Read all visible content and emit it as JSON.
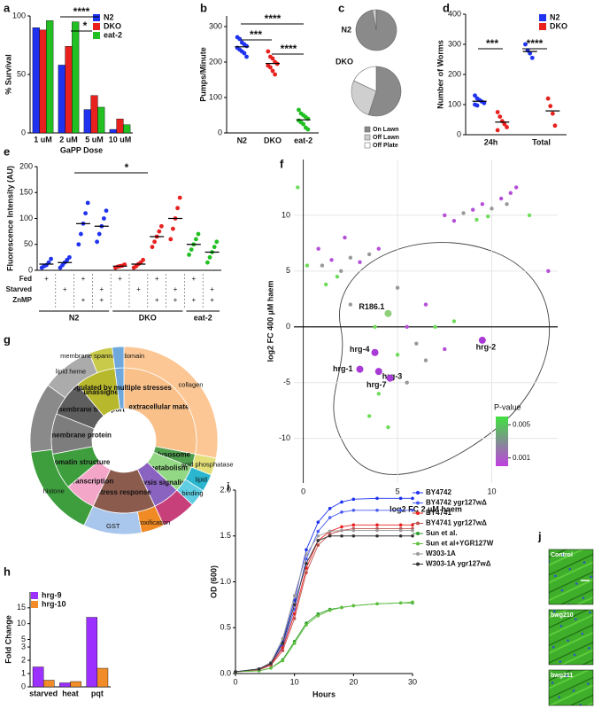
{
  "chart_data": [
    {
      "type": "bar",
      "panel": "a",
      "ylabel": "% Survival",
      "xlabel": "GaPP Dose",
      "categories": [
        "1 uM",
        "2 uM",
        "5 uM",
        "10 uM"
      ],
      "series": [
        {
          "name": "N2",
          "color": "#1e32f0",
          "values": [
            90,
            58,
            20,
            3
          ]
        },
        {
          "name": "DKO",
          "color": "#e8201e",
          "values": [
            88,
            74,
            32,
            12
          ]
        },
        {
          "name": "eat-2",
          "color": "#22c022",
          "values": [
            96,
            95,
            22,
            7
          ]
        }
      ],
      "ylim": [
        0,
        100
      ],
      "yticks": [
        0,
        50,
        100
      ],
      "annotations": [
        "****",
        "*"
      ]
    },
    {
      "type": "strip",
      "panel": "b",
      "ylabel": "Pumps/Minute",
      "categories": [
        "N2",
        "DKO",
        "eat-2"
      ],
      "colors": [
        "#1e32f0",
        "#e8201e",
        "#22c022"
      ],
      "values": [
        243,
        196,
        37
      ],
      "points": [
        [
          270,
          265,
          255,
          250,
          245,
          240,
          235,
          230,
          225,
          215
        ],
        [
          230,
          215,
          210,
          200,
          195,
          190,
          185,
          175,
          165
        ],
        [
          65,
          55,
          50,
          45,
          40,
          35,
          30,
          25,
          15,
          10
        ]
      ],
      "ylim": [
        0,
        330
      ],
      "yticks": [
        0,
        100,
        200,
        300
      ],
      "annotations": [
        "****",
        "***",
        "****"
      ]
    },
    {
      "type": "pie",
      "panel": "c",
      "categories": [
        "On Lawn",
        "Off Lawn",
        "Off Plate"
      ],
      "colors": [
        "#8a8a8a",
        "#cfcfcf",
        "#ffffff"
      ],
      "pies": [
        {
          "label": "N2",
          "values": [
            97,
            3,
            0
          ]
        },
        {
          "label": "DKO",
          "values": [
            55,
            27,
            18
          ]
        }
      ]
    },
    {
      "type": "strip",
      "panel": "d",
      "ylabel": "Number of Worms",
      "categories": [
        "24h",
        "Total"
      ],
      "series": [
        {
          "name": "N2",
          "color": "#1e32f0",
          "values": [
            111,
            276
          ],
          "points": [
            [
              130,
              120,
              115,
              110,
              105,
              100,
              97
            ],
            [
              300,
              280,
              270,
              255
            ]
          ]
        },
        {
          "name": "DKO",
          "color": "#e8201e",
          "values": [
            42,
            79
          ],
          "points": [
            [
              75,
              60,
              45,
              35,
              25,
              15
            ],
            [
              120,
              95,
              70,
              30
            ]
          ]
        }
      ],
      "ylim": [
        0,
        400
      ],
      "yticks": [
        0,
        100,
        200,
        300,
        400
      ],
      "annotations": [
        "***",
        "****"
      ]
    },
    {
      "type": "strip",
      "panel": "e",
      "ylabel": "Fluorescence Intensity (AU)",
      "values": [
        12,
        15,
        90,
        85,
        8,
        12,
        65,
        100,
        50,
        35
      ],
      "colors": [
        "#1e32f0",
        "#1e32f0",
        "#1e32f0",
        "#1e32f0",
        "#e8201e",
        "#e8201e",
        "#e8201e",
        "#e8201e",
        "#22c022",
        "#22c022"
      ],
      "points": [
        [
          5,
          8,
          10,
          15,
          22
        ],
        [
          5,
          10,
          15,
          20,
          25
        ],
        [
          50,
          70,
          90,
          110,
          130
        ],
        [
          55,
          70,
          85,
          100,
          115
        ],
        [
          5,
          7,
          8,
          9,
          11
        ],
        [
          5,
          8,
          12,
          15,
          20
        ],
        [
          45,
          55,
          65,
          75,
          85
        ],
        [
          60,
          80,
          100,
          120,
          140
        ],
        [
          30,
          40,
          50,
          60,
          70
        ],
        [
          15,
          25,
          35,
          45,
          55
        ]
      ],
      "ylim": [
        0,
        200
      ],
      "yticks": [
        0,
        50,
        100,
        150,
        200
      ],
      "table": {
        "rows": [
          {
            "label": "Fed",
            "marks": [
              "+",
              null,
              "+",
              null,
              "+",
              null,
              "+",
              null,
              "+",
              null
            ]
          },
          {
            "label": "Starved",
            "marks": [
              null,
              "+",
              null,
              "+",
              null,
              "+",
              null,
              "+",
              null,
              "+"
            ]
          },
          {
            "label": "ZnMP",
            "marks": [
              null,
              null,
              "+",
              "+",
              null,
              null,
              "+",
              "+",
              "+",
              "+"
            ]
          }
        ]
      },
      "groups": [
        {
          "label": "N2",
          "span": 4
        },
        {
          "label": "DKO",
          "span": 4
        },
        {
          "label": "eat-2",
          "span": 2
        }
      ],
      "annotations": [
        "*"
      ]
    },
    {
      "type": "scatter",
      "panel": "f",
      "xlabel": "log2 FC 2 µM haem",
      "ylabel": "log2 FC 400 µM haem",
      "x": [
        8.5,
        9.0,
        9.5,
        10.0,
        10.5,
        11.0,
        9.2,
        9.8,
        8.0,
        10.8,
        11.3,
        7.5,
        1.0,
        1.5,
        2.0,
        2.5,
        3.0,
        1.8,
        0.8,
        3.5,
        2.2,
        1.2,
        0.2,
        4.0,
        3.8,
        5.5,
        7.0,
        6.0,
        5.0,
        6.5,
        4.0,
        5.5,
        3.5,
        4.5,
        7.5,
        8.0,
        2.5,
        6.5,
        12.0,
        13.0,
        -0.3,
        5.0
      ],
      "y": [
        10.2,
        10.5,
        11.0,
        10.6,
        11.5,
        12.0,
        9.6,
        9.9,
        9.5,
        11.0,
        12.5,
        10.0,
        5.5,
        6.0,
        5.0,
        6.2,
        5.8,
        4.5,
        7.0,
        6.5,
        8.0,
        3.8,
        5.5,
        7.0,
        0.0,
        0.0,
        0.0,
        -1.5,
        -2.5,
        -3.0,
        -6.0,
        -5.0,
        -8.0,
        -9.0,
        -2.0,
        0.5,
        2.0,
        2.0,
        10.0,
        5.0,
        12.5,
        3.5
      ],
      "colors": [
        "#999999",
        "#b44fd8",
        "#b44fd8",
        "#999999",
        "#b44fd8",
        "#b44fd8",
        "#6fdc5a",
        "#6fdc5a",
        "#b44fd8",
        "#999999",
        "#b44fd8",
        "#b44fd8",
        "#999999",
        "#b44fd8",
        "#999999",
        "#999999",
        "#b44fd8",
        "#6fdc5a",
        "#b44fd8",
        "#999999",
        "#b44fd8",
        "#6fdc5a",
        "#6fdc5a",
        "#b44fd8",
        "#6fdc5a",
        "#b44fd8",
        "#6fdc5a",
        "#999999",
        "#6fdc5a",
        "#999999",
        "#6fdc5a",
        "#999999",
        "#6fdc5a",
        "#6fdc5a",
        "#b44fd8",
        "#6fdc5a",
        "#999999",
        "#b44fd8",
        "#6fdc5a",
        "#b44fd8",
        "#6fdc5a",
        "#999999"
      ],
      "highlights": [
        {
          "label": "R186.1",
          "x": 4.5,
          "y": 1.2,
          "color": "#8fcf7a"
        },
        {
          "label": "hrg-4",
          "x": 3.8,
          "y": -2.3,
          "color": "#a83ad6"
        },
        {
          "label": "hrg-1",
          "x": 3.0,
          "y": -3.8,
          "color": "#a83ad6"
        },
        {
          "label": "hrg-3",
          "x": 4.0,
          "y": -4.0,
          "color": "#a83ad6"
        },
        {
          "label": "hrg-7",
          "x": 4.6,
          "y": -4.6,
          "color": "#a83ad6"
        },
        {
          "label": "hrg-2",
          "x": 9.5,
          "y": -1.2,
          "color": "#a83ad6"
        }
      ],
      "xlim": [
        -0.5,
        13.5
      ],
      "ylim": [
        -14,
        15
      ],
      "xticks": [
        0,
        5,
        10
      ],
      "yticks": [
        -10,
        -5,
        0,
        5,
        10
      ],
      "grid": true,
      "colorbar": {
        "title": "P-value",
        "lim": [
          0,
          0.006
        ],
        "ticks": [
          0.005,
          0.001
        ],
        "colors": [
          "#c040e0",
          "#40e040"
        ]
      }
    },
    {
      "type": "sunburst",
      "panel": "g",
      "inner": [
        {
          "label": "extracellular material",
          "value": 28,
          "color": "#f9c08a"
        },
        {
          "label": "lysosome",
          "value": 3,
          "color": "#4ea04e"
        },
        {
          "label": "metabolism",
          "value": 6,
          "color": "#93d884"
        },
        {
          "label": "proteolysis signaling",
          "value": 6,
          "color": "#8a62c0"
        },
        {
          "label": "stress response",
          "value": 14,
          "color": "#8b5b4e"
        },
        {
          "label": "transcription",
          "value": 7,
          "color": "#f4a6c9"
        },
        {
          "label": "chromatin structure",
          "value": 8,
          "color": "#3e9e3e"
        },
        {
          "label": "transmembrane protein",
          "value": 9,
          "color": "#7d7d7d"
        },
        {
          "label": "transmembrane transport",
          "value": 8,
          "color": "#5e5e5e"
        },
        {
          "label": "unassigned",
          "value": 9,
          "color": "#b8b82c"
        },
        {
          "label": "regulated by multiple stresses",
          "value": 2,
          "color": "#6fa8dc"
        }
      ],
      "outer": [
        {
          "label": "collagen",
          "value": 28,
          "color": "#fcc794"
        },
        {
          "label": "acid phosphatase",
          "value": 3,
          "color": "#e3e07a"
        },
        {
          "label": "lipid",
          "value": 3,
          "color": "#2bb6cf"
        },
        {
          "label": "binding",
          "value": 3,
          "color": "#5fcde2"
        },
        {
          "label": null,
          "value": 6,
          "color": "#c8407a"
        },
        {
          "label": "detoxification",
          "value": 4,
          "color": "#f08a24"
        },
        {
          "label": "GST",
          "value": 10,
          "color": "#a9c6ec"
        },
        {
          "label": "histone",
          "value": 16,
          "color": "#3e9e3e"
        },
        {
          "label": null,
          "value": 12,
          "color": "#8a8a8a"
        },
        {
          "label": "lipid heme",
          "value": 9,
          "color": "#ababab"
        },
        {
          "label": "membrane spanning domain",
          "value": 4,
          "color": "#c9c94a"
        },
        {
          "label": null,
          "value": 2,
          "color": "#6fa8dc"
        }
      ]
    },
    {
      "type": "bar",
      "panel": "h",
      "ylabel": "Fold Change",
      "categories": [
        "starved",
        "heat",
        "pqt"
      ],
      "series": [
        {
          "name": "hrg-9",
          "color": "#9b30ff",
          "values": [
            1.5,
            0.3,
            12
          ]
        },
        {
          "name": "hrg-10",
          "color": "#f28c28",
          "values": [
            0.5,
            0.4,
            1.4
          ]
        }
      ],
      "ylim": [
        0,
        20
      ],
      "ybreak": [
        3,
        5
      ],
      "yticks": [
        0,
        1,
        2,
        3,
        5,
        10,
        15
      ]
    },
    {
      "type": "line",
      "panel": "i",
      "xlabel": "Hours",
      "ylabel": "OD (600)",
      "x": [
        0,
        4,
        6,
        8,
        10,
        12,
        14,
        16,
        18,
        20,
        24,
        28,
        30
      ],
      "series": [
        {
          "name": "BY4742",
          "color": "#1e32f0",
          "values": [
            0.02,
            0.05,
            0.12,
            0.35,
            0.8,
            1.35,
            1.65,
            1.8,
            1.87,
            1.9,
            1.91,
            1.91,
            1.91
          ]
        },
        {
          "name": "BY4742 ygr127wΔ",
          "color": "#4a5cf0",
          "values": [
            0.02,
            0.05,
            0.1,
            0.3,
            0.7,
            1.25,
            1.55,
            1.7,
            1.76,
            1.78,
            1.78,
            1.78,
            1.78
          ]
        },
        {
          "name": "BY4741",
          "color": "#e8201e",
          "values": [
            0.02,
            0.04,
            0.1,
            0.28,
            0.65,
            1.15,
            1.45,
            1.55,
            1.6,
            1.62,
            1.62,
            1.62,
            1.62
          ]
        },
        {
          "name": "BY4741 ygr127wΔ",
          "color": "#c0504d",
          "values": [
            0.02,
            0.04,
            0.09,
            0.25,
            0.6,
            1.1,
            1.4,
            1.52,
            1.56,
            1.58,
            1.58,
            1.58,
            1.58
          ]
        },
        {
          "name": "Sun et al.",
          "color": "#2e9e2e",
          "values": [
            0.02,
            0.03,
            0.06,
            0.15,
            0.35,
            0.55,
            0.65,
            0.7,
            0.72,
            0.74,
            0.76,
            0.77,
            0.77
          ]
        },
        {
          "name": "Sun et al+YGR127W",
          "color": "#5fbf3f",
          "values": [
            0.02,
            0.03,
            0.06,
            0.14,
            0.33,
            0.53,
            0.63,
            0.69,
            0.72,
            0.74,
            0.76,
            0.77,
            0.78
          ]
        },
        {
          "name": "W303-1A",
          "color": "#9a9a9a",
          "values": [
            0.02,
            0.05,
            0.12,
            0.38,
            0.85,
            1.3,
            1.5,
            1.55,
            1.56,
            1.56,
            1.56,
            1.56,
            1.56
          ]
        },
        {
          "name": "W303-1A ygr127wΔ",
          "color": "#333333",
          "values": [
            0.02,
            0.05,
            0.11,
            0.33,
            0.75,
            1.2,
            1.45,
            1.5,
            1.5,
            1.5,
            1.5,
            1.5,
            1.5
          ]
        }
      ],
      "xlim": [
        0,
        30
      ],
      "ylim": [
        0,
        2
      ],
      "xticks": [
        0,
        10,
        20,
        30
      ],
      "yticks": [
        {
          "value": 0,
          "label": "0.0"
        },
        0.5,
        {
          "value": 1,
          "label": "1.0"
        },
        1.5,
        {
          "value": 2,
          "label": "2.0"
        }
      ]
    },
    {
      "type": "image",
      "panel": "j",
      "panels": [
        {
          "label": "Control"
        },
        {
          "label": "bwg210"
        },
        {
          "label": "bwg211"
        }
      ]
    }
  ]
}
